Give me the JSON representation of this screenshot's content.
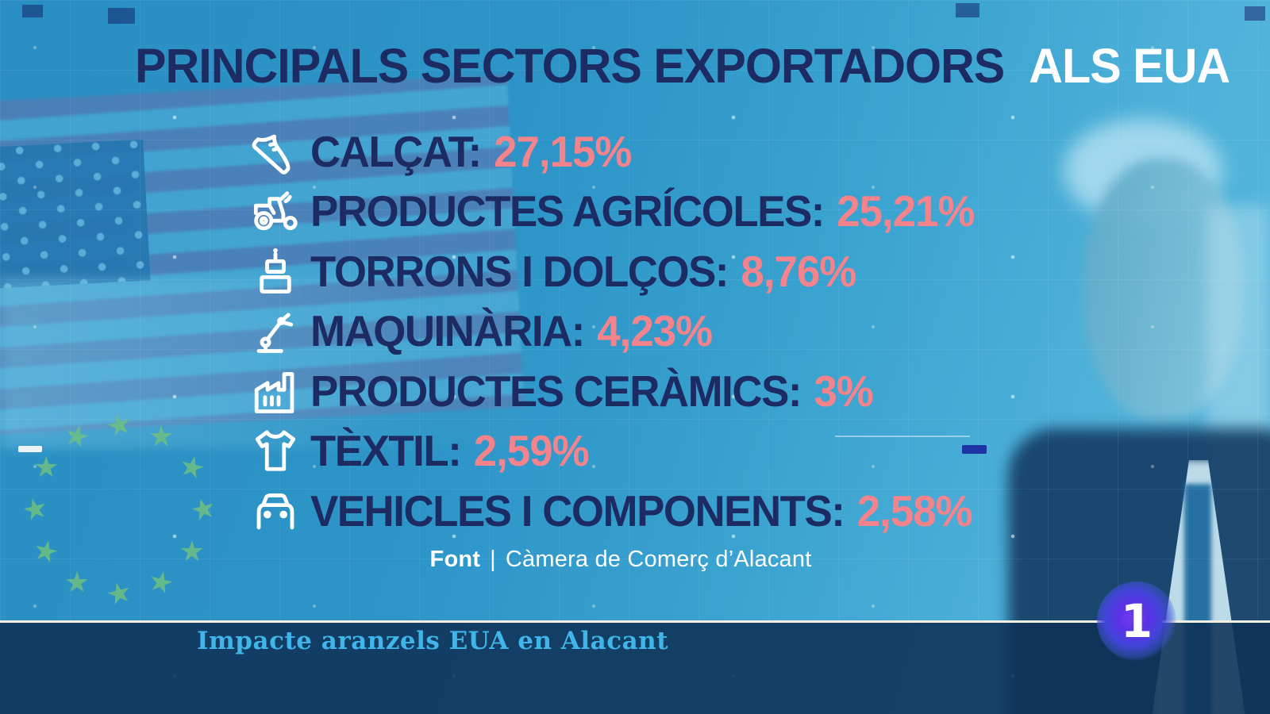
{
  "title": {
    "main": "PRINCIPALS SECTORS EXPORTADORS",
    "highlight": "ALS EUA"
  },
  "sectors": [
    {
      "icon": "sneaker",
      "label": "CALÇAT:",
      "value": "27,15%"
    },
    {
      "icon": "tractor",
      "label": "PRODUCTES AGRÍCOLES:",
      "value": "25,21%"
    },
    {
      "icon": "cake",
      "label": "TORRONS I DOLÇOS:",
      "value": "8,76%"
    },
    {
      "icon": "robot-arm",
      "label": "MAQUINÀRIA:",
      "value": "4,23%"
    },
    {
      "icon": "factory",
      "label": "PRODUCTES CERÀMICS:",
      "value": "3%"
    },
    {
      "icon": "tshirt",
      "label": "TÈXTIL:",
      "value": "2,59%"
    },
    {
      "icon": "car",
      "label": "VEHICLES I COMPONENTS:",
      "value": "2,58%"
    }
  ],
  "source": {
    "label": "Font",
    "separator": "|",
    "text": "Càmera de Comerç d’Alacant"
  },
  "banner": {
    "text": "Impacte aranzels EUA en Alacant"
  },
  "channel_logo": {
    "text": "1"
  },
  "colors": {
    "background_blue": "#2d95c8",
    "title_navy": "#1d2b63",
    "value_pink": "#f4838c",
    "banner_bg": "#0f3156",
    "banner_text": "#3fb5ea",
    "eu_star_green": "#6abe85",
    "logo_purple": "#5a32e6"
  },
  "chart_data": {
    "type": "table",
    "title": "PRINCIPALS SECTORS EXPORTADORS ALS EUA",
    "categories": [
      "Calçat",
      "Productes agrícoles",
      "Torrons i dolços",
      "Maquinària",
      "Productes ceràmics",
      "Tèxtil",
      "Vehicles i components"
    ],
    "values": [
      27.15,
      25.21,
      8.76,
      4.23,
      3,
      2.59,
      2.58
    ],
    "unit": "%",
    "source": "Càmera de Comerç d’Alacant"
  }
}
